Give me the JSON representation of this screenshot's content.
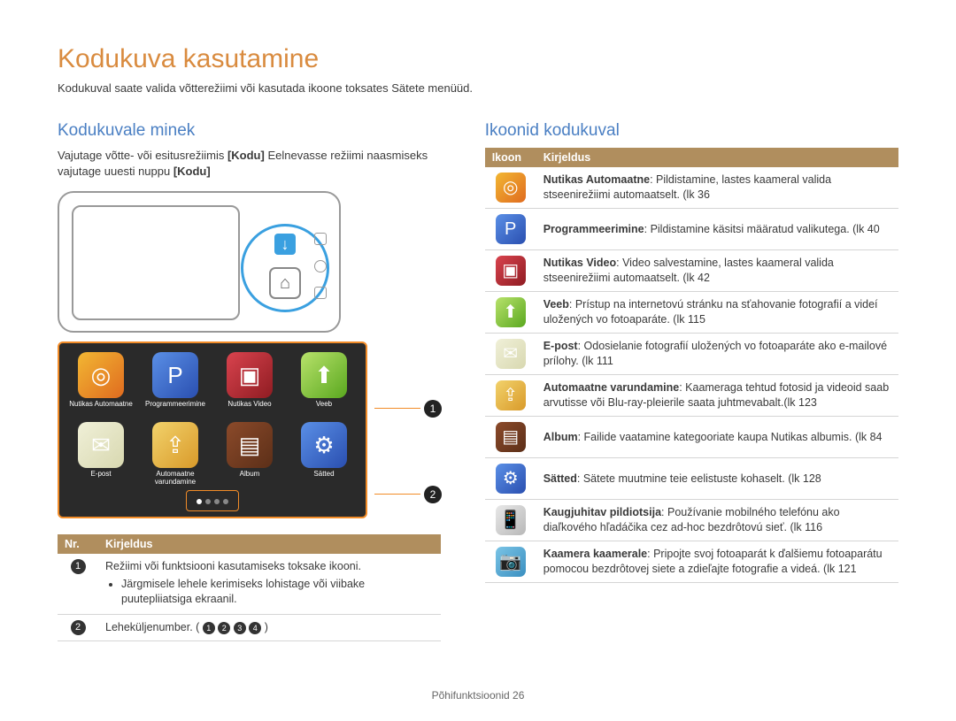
{
  "title": "Kodukuva kasutamine",
  "subtitle": "Kodukuval saate valida võtterežiimi või kasutada ikoone toksates Sätete menüüd.",
  "left": {
    "section_title": "Kodukuvale minek",
    "body_1a": "Vajutage võtte- või esitusrežiimis ",
    "body_1b": "[Kodu]",
    "body_1c": " Eelnevasse režiimi naasmiseks vajutage uuesti nuppu ",
    "body_1d": "[Kodu]",
    "home_icons": [
      {
        "label": "Nutikas Automaatne",
        "glyph": "◎",
        "cls": "bg-smart"
      },
      {
        "label": "Programmeerimine",
        "glyph": "P",
        "cls": "bg-p"
      },
      {
        "label": "Nutikas Video",
        "glyph": "▣",
        "cls": "bg-video"
      },
      {
        "label": "Veeb",
        "glyph": "⬆",
        "cls": "bg-web"
      },
      {
        "label": "E-post",
        "glyph": "✉",
        "cls": "bg-epost"
      },
      {
        "label": "Automaatne varundamine",
        "glyph": "⇪",
        "cls": "bg-backup"
      },
      {
        "label": "Album",
        "glyph": "▤",
        "cls": "bg-album"
      },
      {
        "label": "Sätted",
        "glyph": "⚙",
        "cls": "bg-settings"
      }
    ],
    "nr_table": {
      "headers": [
        "Nr.",
        "Kirjeldus"
      ],
      "row1_text": "Režiimi või funktsiooni kasutamiseks toksake ikooni.",
      "row1_bullet": "Järgmisele lehele kerimiseks lohistage või viibake puutepliiatsiga ekraanil.",
      "row2_a": "Leheküljenumber. (",
      "row2_b": ")"
    }
  },
  "right": {
    "section_title": "Ikoonid kodukuval",
    "headers": [
      "Ikoon",
      "Kirjeldus"
    ],
    "rows": [
      {
        "cls": "bg-smart",
        "glyph": "◎",
        "bold": "Nutikas Automaatne",
        "rest": ": Pildistamine, lastes kaameral valida stseenirežiimi automaatselt. (lk 36"
      },
      {
        "cls": "bg-p",
        "glyph": "P",
        "bold": "Programmeerimine",
        "rest": ": Pildistamine käsitsi määratud valikutega. (lk 40"
      },
      {
        "cls": "bg-video",
        "glyph": "▣",
        "bold": "Nutikas Video",
        "rest": ": Video salvestamine, lastes kaameral valida stseenirežiimi automaatselt. (lk 42"
      },
      {
        "cls": "bg-web",
        "glyph": "⬆",
        "bold": "Veeb",
        "rest": ": Prístup na internetovú stránku na sťahovanie fotografií a videí uložených vo fotoaparáte. (lk 115"
      },
      {
        "cls": "bg-epost",
        "glyph": "✉",
        "bold": "E-post",
        "rest": ": Odosielanie fotografií uložených vo fotoaparáte ako e-mailové prílohy. (lk 111"
      },
      {
        "cls": "bg-backup",
        "glyph": "⇪",
        "bold": "Automaatne varundamine",
        "rest": ": Kaameraga tehtud fotosid ja videoid saab arvutisse või Blu-ray-pleierile saata juhtmevabalt.(lk 123"
      },
      {
        "cls": "bg-album",
        "glyph": "▤",
        "bold": "Album",
        "rest": ": Failide vaatamine kategooriate kaupa Nutikas albumis. (lk 84"
      },
      {
        "cls": "bg-settings",
        "glyph": "⚙",
        "bold": "Sätted",
        "rest": ": Sätete muutmine teie eelistuste kohaselt. (lk 128"
      },
      {
        "cls": "bg-remote",
        "glyph": "📱",
        "bold": "Kaugjuhitav pildiotsija",
        "rest": ": Používanie mobilného telefónu ako diaľkového hľadáčika cez ad-hoc bezdrôtovú sieť. (lk 116"
      },
      {
        "cls": "bg-cam2cam",
        "glyph": "📷",
        "bold": "Kaamera kaamerale",
        "rest": ": Pripojte svoj fotoaparát k ďalšiemu fotoaparátu pomocou bezdrôtovej siete a zdieľajte fotografie a videá. (lk 121"
      }
    ]
  },
  "footer_a": "Põhifunktsioonid  ",
  "footer_b": "26"
}
